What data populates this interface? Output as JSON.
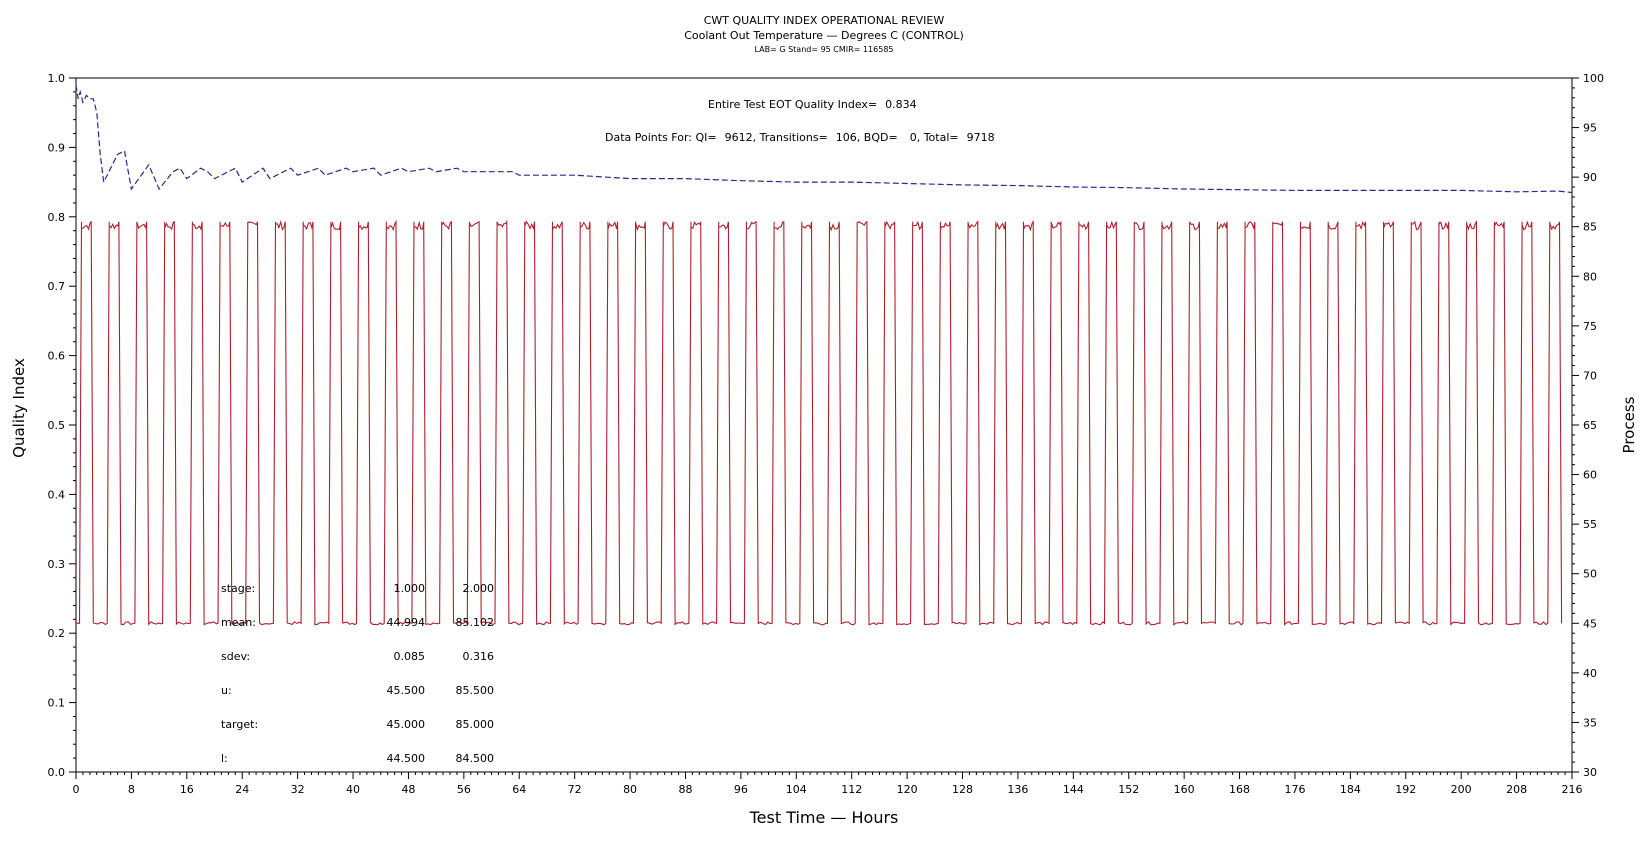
{
  "chart_data": {
    "type": "line",
    "title": "CWT QUALITY INDEX OPERATIONAL REVIEW",
    "subtitle": "Coolant Out Temperature — Degrees C (CONTROL)",
    "subtitle2": "LAB= G Stand= 95 CMIR= 116585",
    "xlabel": "Test Time — Hours",
    "ylabel_left": "Quality Index",
    "ylabel_right": "Process",
    "xlim": [
      0,
      216
    ],
    "ylim_left": [
      0.0,
      1.0
    ],
    "ylim_right": [
      30,
      100
    ],
    "x_ticks": [
      "0",
      "8",
      "16",
      "24",
      "32",
      "40",
      "48",
      "56",
      "64",
      "72",
      "80",
      "88",
      "96",
      "104",
      "112",
      "120",
      "128",
      "136",
      "144",
      "152",
      "160",
      "168",
      "176",
      "184",
      "192",
      "200",
      "208",
      "216"
    ],
    "y_left_ticks": [
      "0.0",
      "0.1",
      "0.2",
      "0.3",
      "0.4",
      "0.5",
      "0.6",
      "0.7",
      "0.8",
      "0.9",
      "1.0"
    ],
    "y_right_ticks": [
      "30",
      "35",
      "40",
      "45",
      "50",
      "55",
      "60",
      "65",
      "70",
      "75",
      "80",
      "85",
      "90",
      "95",
      "100"
    ],
    "grid": false,
    "annotations": {
      "eot_label": "Entire Test EOT Quality Index=",
      "eot_value": "0.834",
      "datapoints_label": "Data Points For: QI=",
      "qi": "9612",
      "transitions_label": "Transitions=",
      "transitions": "106",
      "bqd_label": "BQD=",
      "bqd": "0",
      "total_label": "Total=",
      "total": "9718"
    },
    "stats_table": {
      "rows": [
        {
          "label": "stage:",
          "v1": "1.000",
          "v2": "2.000"
        },
        {
          "label": "mean:",
          "v1": "44.994",
          "v2": "85.102"
        },
        {
          "label": "sdev:",
          "v1": "0.085",
          "v2": "0.316"
        },
        {
          "label": "u:",
          "v1": "45.500",
          "v2": "85.500"
        },
        {
          "label": "target:",
          "v1": "45.000",
          "v2": "85.000"
        },
        {
          "label": "l:",
          "v1": "44.500",
          "v2": "84.500"
        }
      ]
    },
    "series": [
      {
        "axis": "left",
        "color": "#2a2a8c",
        "style": "dashed",
        "points": [
          [
            0,
            0.99
          ],
          [
            0.3,
            0.97
          ],
          [
            0.6,
            0.98
          ],
          [
            1,
            0.965
          ],
          [
            1.5,
            0.975
          ],
          [
            2,
            0.97
          ],
          [
            2.5,
            0.97
          ],
          [
            3,
            0.95
          ],
          [
            3.5,
            0.89
          ],
          [
            4,
            0.85
          ],
          [
            6,
            0.89
          ],
          [
            7,
            0.895
          ],
          [
            8,
            0.84
          ],
          [
            10.5,
            0.875
          ],
          [
            12,
            0.84
          ],
          [
            14,
            0.865
          ],
          [
            15,
            0.87
          ],
          [
            16,
            0.855
          ],
          [
            18,
            0.87
          ],
          [
            19,
            0.865
          ],
          [
            20,
            0.855
          ],
          [
            23,
            0.87
          ],
          [
            24,
            0.85
          ],
          [
            27,
            0.87
          ],
          [
            28,
            0.855
          ],
          [
            31,
            0.87
          ],
          [
            32,
            0.86
          ],
          [
            35,
            0.87
          ],
          [
            36,
            0.86
          ],
          [
            39,
            0.87
          ],
          [
            40,
            0.865
          ],
          [
            43,
            0.87
          ],
          [
            44,
            0.86
          ],
          [
            47,
            0.87
          ],
          [
            48,
            0.865
          ],
          [
            51,
            0.87
          ],
          [
            52,
            0.865
          ],
          [
            55,
            0.87
          ],
          [
            56,
            0.865
          ],
          [
            63,
            0.865
          ],
          [
            64,
            0.86
          ],
          [
            72,
            0.86
          ],
          [
            80,
            0.855
          ],
          [
            88,
            0.855
          ],
          [
            96,
            0.852
          ],
          [
            104,
            0.85
          ],
          [
            112,
            0.85
          ],
          [
            120,
            0.848
          ],
          [
            128,
            0.846
          ],
          [
            136,
            0.845
          ],
          [
            144,
            0.843
          ],
          [
            152,
            0.842
          ],
          [
            160,
            0.84
          ],
          [
            168,
            0.839
          ],
          [
            176,
            0.838
          ],
          [
            184,
            0.838
          ],
          [
            192,
            0.838
          ],
          [
            200,
            0.838
          ],
          [
            208,
            0.836
          ],
          [
            214,
            0.837
          ],
          [
            216,
            0.835
          ]
        ]
      },
      {
        "axis": "right",
        "color": "#b0202c",
        "style": "solid",
        "low": 45,
        "high": 85.5,
        "start": 0.5,
        "period": 4,
        "rise": 0.3,
        "high_hold": 1.4,
        "fall": 0.3,
        "cycles": 54
      }
    ]
  }
}
